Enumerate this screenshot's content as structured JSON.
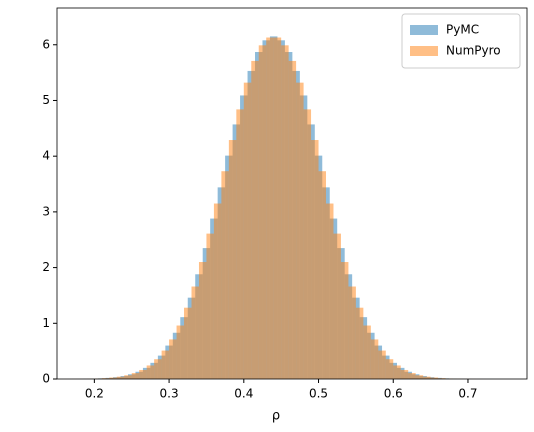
{
  "chart_data": {
    "type": "histogram",
    "xlabel": "ρ",
    "legend": "upper right",
    "xlim": [
      0.15,
      0.779
    ],
    "ylim": [
      0,
      6.66
    ],
    "xticks": [
      0.2,
      0.3,
      0.4,
      0.5,
      0.6,
      0.7
    ],
    "yticks": [
      0,
      1,
      2,
      3,
      4,
      5,
      6
    ],
    "series": [
      {
        "name": "PyMC",
        "color": "#1f77b4",
        "opacity": 0.5,
        "bins": [
          0.165,
          0.175,
          0.185,
          0.195,
          0.205,
          0.215,
          0.225,
          0.235,
          0.245,
          0.255,
          0.265,
          0.275,
          0.285,
          0.295,
          0.305,
          0.315,
          0.325,
          0.335,
          0.345,
          0.355,
          0.365,
          0.375,
          0.385,
          0.395,
          0.405,
          0.415,
          0.425,
          0.435,
          0.445,
          0.455,
          0.465,
          0.475,
          0.485,
          0.495,
          0.505,
          0.515,
          0.525,
          0.535,
          0.545,
          0.555,
          0.565,
          0.575,
          0.585,
          0.595,
          0.605,
          0.615,
          0.625,
          0.635,
          0.645,
          0.655,
          0.665,
          0.675,
          0.685,
          0.695,
          0.705,
          0.715,
          0.725,
          0.735
        ],
        "values": [
          0.001,
          0.002,
          0.004,
          0.007,
          0.012,
          0.02,
          0.033,
          0.053,
          0.085,
          0.13,
          0.2,
          0.29,
          0.42,
          0.6,
          0.83,
          1.11,
          1.46,
          1.88,
          2.35,
          2.88,
          3.44,
          4.01,
          4.57,
          5.09,
          5.53,
          5.87,
          6.08,
          6.15,
          6.08,
          5.87,
          5.53,
          5.09,
          4.57,
          4.01,
          3.44,
          2.88,
          2.35,
          1.88,
          1.46,
          1.11,
          0.83,
          0.6,
          0.42,
          0.29,
          0.2,
          0.13,
          0.085,
          0.053,
          0.033,
          0.02,
          0.012,
          0.007,
          0.004,
          0.002,
          0.001,
          0.0006,
          0.0003
        ]
      },
      {
        "name": "NumPyro",
        "color": "#ff7f0e",
        "opacity": 0.5,
        "bins": [
          0.16,
          0.17,
          0.18,
          0.19,
          0.2,
          0.21,
          0.22,
          0.23,
          0.24,
          0.25,
          0.26,
          0.27,
          0.28,
          0.29,
          0.3,
          0.31,
          0.32,
          0.33,
          0.34,
          0.35,
          0.36,
          0.37,
          0.38,
          0.39,
          0.4,
          0.41,
          0.42,
          0.43,
          0.44,
          0.45,
          0.46,
          0.47,
          0.48,
          0.49,
          0.5,
          0.51,
          0.52,
          0.53,
          0.54,
          0.55,
          0.56,
          0.57,
          0.58,
          0.59,
          0.6,
          0.61,
          0.62,
          0.63,
          0.64,
          0.65,
          0.66,
          0.67,
          0.68,
          0.69,
          0.7,
          0.71,
          0.72
        ],
        "values": [
          0.0008,
          0.0015,
          0.0027,
          0.005,
          0.0087,
          0.015,
          0.026,
          0.042,
          0.067,
          0.106,
          0.162,
          0.243,
          0.355,
          0.51,
          0.71,
          0.96,
          1.28,
          1.66,
          2.1,
          2.61,
          3.15,
          3.73,
          4.29,
          4.84,
          5.32,
          5.71,
          5.99,
          6.13,
          6.13,
          5.99,
          5.71,
          5.32,
          4.84,
          4.29,
          3.73,
          3.15,
          2.61,
          2.1,
          1.66,
          1.28,
          0.96,
          0.71,
          0.51,
          0.355,
          0.243,
          0.162,
          0.106,
          0.067,
          0.042,
          0.026,
          0.015,
          0.0087,
          0.005,
          0.0027,
          0.0015,
          0.0008
        ]
      }
    ]
  }
}
